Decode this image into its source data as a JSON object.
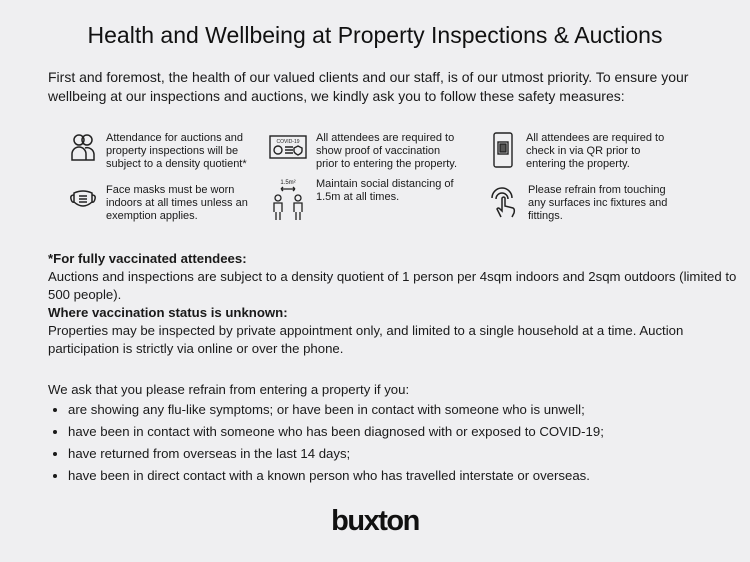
{
  "title": "Health and Wellbeing at Property Inspections & Auctions",
  "intro": "First and foremost, the health of our valued clients and our staff, is of our utmost priority. To ensure your wellbeing at our inspections and auctions, we kindly ask you to follow these safety measures:",
  "measures": [
    {
      "icon": "people-icon",
      "text": "Attendance for auctions and property inspections will be subject to a density quotient*"
    },
    {
      "icon": "vaccination-certificate-icon",
      "label": "COVID-19",
      "text": "All attendees are required to show proof of vaccination prior to entering the property."
    },
    {
      "icon": "qr-phone-icon",
      "text": "All attendees are required to check in via QR prior to entering the property."
    },
    {
      "icon": "face-mask-icon",
      "text": "Face masks must be worn indoors at all times unless an exemption applies."
    },
    {
      "icon": "social-distancing-icon",
      "label": "1.5m²",
      "text": "Maintain social distancing of 1.5m at all times."
    },
    {
      "icon": "touch-hand-icon",
      "text": "Please refrain from touching any surfaces inc fixtures and fittings."
    }
  ],
  "vaccinated": {
    "heading": "*For fully vaccinated attendees:",
    "text": "Auctions and inspections are subject to a density quotient of 1 person per 4sqm indoors and 2sqm outdoors (limited to 500 people)."
  },
  "unknown": {
    "heading": "Where vaccination status is unknown:",
    "text": "Properties may be inspected by private appointment only, and limited to a single household at a time. Auction participation is strictly via online or over the phone."
  },
  "ask": {
    "intro": "We ask that you please refrain from entering a property if you:",
    "items": [
      "are showing any flu-like symptoms; or have been in contact with someone who is unwell;",
      "have been in contact with someone who has been diagnosed with or exposed to COVID-19;",
      "have returned from overseas in the last 14 days;",
      "have been in direct contact with a known person who has travelled interstate or overseas."
    ]
  },
  "logo": "buxton"
}
